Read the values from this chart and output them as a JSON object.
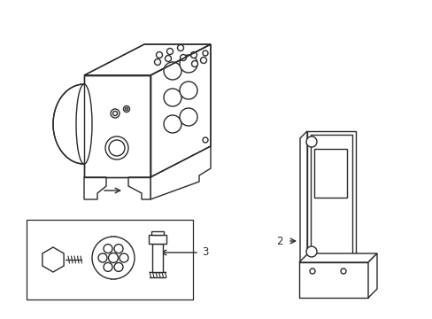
{
  "background_color": "#ffffff",
  "line_color": "#2a2a2a",
  "line_width": 1.0,
  "label_fontsize": 8.5,
  "figsize": [
    4.89,
    3.6
  ],
  "dpi": 100
}
